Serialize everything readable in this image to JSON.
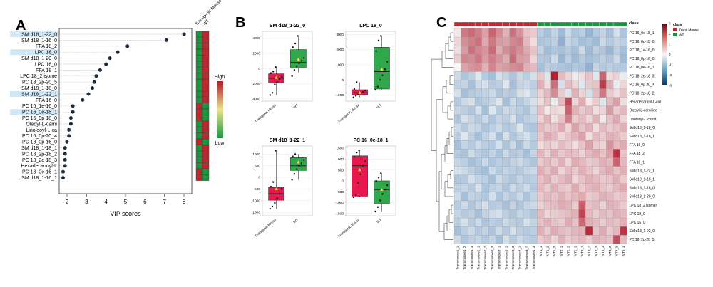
{
  "panels": {
    "A": "A",
    "B": "B",
    "C": "C"
  },
  "colors": {
    "red": "#c0262d",
    "green": "#1a9641",
    "dot": "#1f2a44",
    "highlight": "#cfe8f7",
    "box_red": "#e8174e",
    "box_green": "#2ea84a",
    "heat_high": "#b2182b",
    "heat_low": "#2166ac"
  },
  "panel_a": {
    "title": "A",
    "xlabel": "VIP scores",
    "ticks": [
      2,
      3,
      4,
      5,
      6,
      7,
      8
    ],
    "col_labels": [
      "Transgenic Mouse",
      "WT"
    ],
    "legend_high": "High",
    "legend_low": "Low",
    "rows": [
      {
        "name": "SM d18_1-22_0",
        "vip": 8.0,
        "hl": true,
        "tg": "green",
        "wt": "red"
      },
      {
        "name": "SM d18_1-16_0",
        "vip": 7.1,
        "hl": false,
        "tg": "green",
        "wt": "red"
      },
      {
        "name": "FFA 18_2",
        "vip": 5.1,
        "hl": false,
        "tg": "green",
        "wt": "red"
      },
      {
        "name": "LPC 18_0",
        "vip": 4.6,
        "hl": true,
        "tg": "green",
        "wt": "red"
      },
      {
        "name": "SM d18_1-20_0",
        "vip": 4.2,
        "hl": false,
        "tg": "green",
        "wt": "red"
      },
      {
        "name": "LPC 16_0",
        "vip": 4.0,
        "hl": false,
        "tg": "green",
        "wt": "red"
      },
      {
        "name": "FFA 18_1",
        "vip": 3.7,
        "hl": false,
        "tg": "green",
        "wt": "red"
      },
      {
        "name": "LPC 18_2 isome",
        "vip": 3.5,
        "hl": false,
        "tg": "green",
        "wt": "red"
      },
      {
        "name": "PC 18_2p-20_5",
        "vip": 3.4,
        "hl": false,
        "tg": "green",
        "wt": "red"
      },
      {
        "name": "SM d18_1-18_0",
        "vip": 3.3,
        "hl": false,
        "tg": "green",
        "wt": "red"
      },
      {
        "name": "SM d18_1-22_1",
        "vip": 3.1,
        "hl": true,
        "tg": "green",
        "wt": "red"
      },
      {
        "name": "FFA 16_0",
        "vip": 2.8,
        "hl": false,
        "tg": "green",
        "wt": "red"
      },
      {
        "name": "PC 16_1e-16_0",
        "vip": 2.3,
        "hl": false,
        "tg": "red",
        "wt": "green"
      },
      {
        "name": "PC 16_0e-18_1",
        "vip": 2.3,
        "hl": true,
        "tg": "red",
        "wt": "green"
      },
      {
        "name": "PC 16_0p-18_0",
        "vip": 2.2,
        "hl": false,
        "tg": "red",
        "wt": "green"
      },
      {
        "name": "Oleoyl-L-carni",
        "vip": 2.2,
        "hl": false,
        "tg": "green",
        "wt": "red"
      },
      {
        "name": "Linoleoyl-L-ca",
        "vip": 2.1,
        "hl": false,
        "tg": "green",
        "wt": "red"
      },
      {
        "name": "PC 16_0p-20_4",
        "vip": 2.1,
        "hl": false,
        "tg": "green",
        "wt": "red"
      },
      {
        "name": "PC 18_0p-16_0",
        "vip": 2.0,
        "hl": false,
        "tg": "red",
        "wt": "green"
      },
      {
        "name": "SM d18_1-18_1",
        "vip": 1.9,
        "hl": false,
        "tg": "green",
        "wt": "red"
      },
      {
        "name": "PC 18_2p-18_2",
        "vip": 1.9,
        "hl": false,
        "tg": "green",
        "wt": "red"
      },
      {
        "name": "PC 18_2e-18_3",
        "vip": 1.9,
        "hl": false,
        "tg": "green",
        "wt": "red"
      },
      {
        "name": "Hexadecanoyl-L",
        "vip": 1.9,
        "hl": false,
        "tg": "green",
        "wt": "red"
      },
      {
        "name": "PC 18_0e-16_1",
        "vip": 1.8,
        "hl": false,
        "tg": "red",
        "wt": "green"
      },
      {
        "name": "SM d18_1-16_1",
        "vip": 1.8,
        "hl": false,
        "tg": "red",
        "wt": "green"
      }
    ]
  },
  "panel_b": {
    "title": "B",
    "categories": [
      "Transgenic Mouse",
      "WT"
    ],
    "plots": [
      {
        "title": "SM d18_1-22_0",
        "yticks": [
          -4000,
          -2000,
          0,
          2000,
          4000
        ],
        "ylim": [
          -4300,
          4900
        ],
        "boxes": [
          {
            "q1": -1900,
            "med": -1300,
            "q3": -700,
            "lo": -3500,
            "hi": 200,
            "mean": -1200,
            "pts": [
              -3500,
              -3200,
              -2100,
              -1800,
              -1400,
              -1100,
              -600,
              -400,
              200
            ]
          },
          {
            "q1": 100,
            "med": 800,
            "q3": 2500,
            "lo": -500,
            "hi": 4400,
            "mean": 1200,
            "pts": [
              -1000,
              -200,
              300,
              700,
              1000,
              1400,
              2800,
              3300,
              4300
            ]
          }
        ]
      },
      {
        "title": "LPC 18_0",
        "yticks": [
          -1000,
          0,
          1000,
          2000,
          3000
        ],
        "ylim": [
          -1400,
          3200
        ],
        "boxes": [
          {
            "q1": -1000,
            "med": -850,
            "q3": -650,
            "lo": -1150,
            "hi": -150,
            "mean": -850,
            "pts": [
              -1150,
              -1050,
              -950,
              -900,
              -800,
              -700,
              -600,
              -150
            ]
          },
          {
            "q1": -600,
            "med": 550,
            "q3": 2150,
            "lo": -650,
            "hi": 2900,
            "mean": 700,
            "pts": [
              -650,
              -450,
              0,
              300,
              700,
              1200,
              1900,
              2600,
              2900
            ]
          }
        ]
      },
      {
        "title": "SM d18_1-22_1",
        "yticks": [
          -1500,
          -1000,
          -500,
          0,
          500,
          1000
        ],
        "ylim": [
          -1650,
          1350
        ],
        "boxes": [
          {
            "q1": -980,
            "med": -700,
            "q3": -430,
            "lo": -1350,
            "hi": 1150,
            "mean": -500,
            "pts": [
              -1350,
              -1250,
              -1100,
              -900,
              -700,
              -500,
              -400,
              -200,
              1150
            ]
          },
          {
            "q1": 300,
            "med": 500,
            "q3": 850,
            "lo": -100,
            "hi": 1000,
            "mean": 650,
            "pts": [
              -100,
              150,
              350,
              500,
              600,
              750,
              900,
              1000
            ]
          }
        ]
      },
      {
        "title": "PC 16_0e-18_1",
        "yticks": [
          -1500,
          -1000,
          -500,
          0,
          500,
          1000,
          1500
        ],
        "ylim": [
          -1600,
          1600
        ],
        "boxes": [
          {
            "q1": -700,
            "med": 700,
            "q3": 1150,
            "lo": -750,
            "hi": 1400,
            "mean": 500,
            "pts": [
              -750,
              -650,
              -100,
              300,
              700,
              900,
              1100,
              1300,
              1400
            ]
          },
          {
            "q1": -1050,
            "med": -400,
            "q3": 0,
            "lo": -1400,
            "hi": 350,
            "mean": -400,
            "pts": [
              -1400,
              -1200,
              -900,
              -600,
              -400,
              -200,
              0,
              150,
              350
            ]
          }
        ]
      }
    ]
  },
  "panel_c": {
    "title": "C",
    "class_label": "class",
    "legend_title": "class",
    "legend_items": [
      "Trans Mouse",
      "WT"
    ],
    "scale_ticks": [
      "3",
      "2",
      "1",
      "0",
      "-1",
      "-2",
      "-3"
    ],
    "rows": [
      "PC 16_0e-18_1",
      "PC 16_0p-18_0",
      "PC 18_1e-16_0",
      "PC 18_0p-16_0",
      "PC 18_0e-16_1",
      "PC 18_2e-18_3",
      "PC 16_0p-20_4",
      "PC 18_2p-18_2",
      "Hexadecanoyl-L-car",
      "Oleoyl-L-carnitine",
      "Linoleoyl-L-carnit",
      "SM d18_1-18_0",
      "SM d18_1-18_1",
      "FFA 16_0",
      "FFA 18_2",
      "FFA 18_1",
      "SM d18_1-22_1",
      "SM d18_1-16_1",
      "SM d18_1-18_0",
      "SM d18_1-20_0",
      "LPC 18_2 isomer",
      "LPC 18_0",
      "LPC 16_0",
      "SM d18_1-22_0",
      "PC 18_2p-20_5"
    ],
    "cols": [
      "Transmouse1_1",
      "Transmouse1_2",
      "Transmouse1_3",
      "Transmouse2_1",
      "Transmouse2_2",
      "Transmouse2_3",
      "Transmouse3_1",
      "Transmouse3_2",
      "Transmouse3_3",
      "Transmouse4_1",
      "Transmouse4_2",
      "Transmouse4_3",
      "WT1_1",
      "WT1_2",
      "WT1_3",
      "WT2_1",
      "WT2_2",
      "WT2_3",
      "WT3_1",
      "WT3_2",
      "WT3_3",
      "WT4_1",
      "WT4_2",
      "WT4_3",
      "WT5_1"
    ],
    "n_trans": 12,
    "matrix": [
      [
        0.1,
        1.5,
        1.7,
        1.4,
        0.9,
        1.8,
        1.2,
        0.7,
        1.6,
        1.1,
        0.5,
        0.4,
        -0.6,
        -0.9,
        -0.5,
        -1.0,
        -0.4,
        -0.8,
        -0.6,
        -1.1,
        -0.7,
        -0.5,
        -0.9,
        -0.3,
        -0.8
      ],
      [
        0.3,
        1.2,
        1.4,
        1.6,
        0.8,
        1.5,
        1.0,
        0.9,
        1.3,
        1.4,
        0.6,
        0.2,
        -0.8,
        -0.7,
        -0.6,
        -1.2,
        -0.5,
        -0.6,
        -0.9,
        -0.8,
        -1.0,
        -0.4,
        -0.7,
        -0.5,
        -0.6
      ],
      [
        0.2,
        1.0,
        1.6,
        1.3,
        1.1,
        1.7,
        0.8,
        1.2,
        1.5,
        1.2,
        0.8,
        0.5,
        -0.5,
        -1.0,
        -0.8,
        -0.9,
        -0.7,
        -0.9,
        -0.4,
        -1.0,
        -0.6,
        -0.8,
        -1.1,
        -0.6,
        -0.9
      ],
      [
        0.4,
        1.3,
        1.2,
        1.5,
        1.0,
        1.4,
        1.1,
        0.8,
        1.7,
        1.0,
        0.9,
        0.3,
        -0.7,
        -0.8,
        -0.4,
        -1.1,
        -0.6,
        -1.0,
        -0.7,
        -0.9,
        -0.8,
        -0.6,
        -0.8,
        -0.4,
        -1.0
      ],
      [
        0.0,
        0.9,
        1.1,
        1.2,
        0.7,
        1.3,
        0.9,
        1.0,
        1.2,
        1.3,
        0.7,
        0.6,
        -0.9,
        -0.6,
        -0.7,
        -0.8,
        -0.9,
        -0.7,
        -0.8,
        -1.2,
        -0.5,
        -0.7,
        -0.6,
        -0.7,
        -0.7
      ],
      [
        -0.4,
        -0.8,
        -0.6,
        -0.2,
        -0.7,
        -0.9,
        -0.3,
        -0.5,
        -0.8,
        -0.4,
        -0.6,
        -0.3,
        0.4,
        -0.2,
        2.9,
        0.6,
        0.3,
        -0.1,
        0.2,
        0.5,
        -0.2,
        1.8,
        0.2,
        0.3,
        -0.1
      ],
      [
        -0.6,
        -0.5,
        -0.9,
        -0.4,
        -0.3,
        -0.7,
        -0.6,
        -0.2,
        -0.9,
        -0.5,
        -0.4,
        -0.6,
        0.7,
        0.2,
        1.6,
        -0.3,
        0.6,
        0.3,
        -0.2,
        0.4,
        0.5,
        2.4,
        0.8,
        -0.1,
        0.3
      ],
      [
        -0.3,
        -0.9,
        -0.7,
        -0.6,
        -0.5,
        -0.4,
        -0.8,
        -0.6,
        -0.7,
        -0.3,
        -0.2,
        -0.5,
        0.3,
        0.6,
        1.2,
        0.4,
        -0.2,
        0.7,
        0.3,
        -0.3,
        0.6,
        1.5,
        0.4,
        0.2,
        0.5
      ],
      [
        -0.7,
        -0.4,
        -0.3,
        -0.8,
        -0.6,
        -0.5,
        -0.2,
        -0.9,
        -0.4,
        -0.7,
        -0.5,
        -0.3,
        0.2,
        0.5,
        -0.1,
        0.6,
        2.2,
        0.3,
        0.8,
        0.1,
        0.4,
        -0.2,
        0.6,
        0.9,
        0.2
      ],
      [
        -0.5,
        -0.6,
        -0.8,
        -0.3,
        -0.9,
        -0.2,
        -0.7,
        -0.4,
        -0.5,
        -0.6,
        -0.8,
        -0.4,
        0.5,
        0.1,
        0.3,
        0.2,
        1.8,
        0.7,
        0.4,
        0.6,
        0.2,
        0.3,
        1.0,
        0.4,
        0.6
      ],
      [
        -0.8,
        -0.3,
        -0.5,
        -0.7,
        -0.4,
        -0.8,
        -0.5,
        -0.6,
        -0.3,
        -0.8,
        -0.6,
        -0.5,
        0.3,
        0.7,
        0.2,
        0.5,
        1.4,
        0.4,
        0.6,
        0.3,
        0.7,
        0.1,
        0.5,
        0.8,
        0.3
      ],
      [
        -0.4,
        -0.7,
        -0.4,
        -0.5,
        -0.8,
        -0.6,
        -0.4,
        -0.7,
        -0.6,
        -0.2,
        -0.7,
        -0.8,
        0.6,
        0.4,
        0.5,
        0.8,
        0.3,
        0.9,
        0.5,
        0.7,
        0.2,
        0.6,
        0.4,
        0.5,
        0.7
      ],
      [
        -0.6,
        -0.2,
        -0.6,
        -0.9,
        -0.5,
        -0.3,
        -0.9,
        -0.3,
        -0.8,
        -0.5,
        -0.3,
        -0.6,
        0.4,
        0.8,
        0.6,
        0.3,
        0.5,
        0.6,
        0.9,
        0.2,
        0.6,
        0.4,
        0.7,
        0.6,
        0.4
      ],
      [
        -0.9,
        -0.5,
        -0.7,
        -0.4,
        -0.6,
        -0.7,
        -0.3,
        -0.8,
        -0.4,
        -0.9,
        -0.4,
        -0.7,
        0.2,
        0.4,
        0.3,
        0.6,
        0.4,
        0.2,
        0.5,
        0.9,
        0.4,
        0.3,
        1.1,
        0.6,
        0.8
      ],
      [
        -0.7,
        -0.8,
        -0.4,
        -0.6,
        -0.7,
        -0.5,
        -0.8,
        -0.4,
        -0.7,
        -0.6,
        -0.9,
        -0.5,
        0.6,
        0.3,
        0.7,
        0.4,
        0.6,
        0.5,
        0.3,
        0.6,
        0.8,
        0.5,
        0.9,
        2.6,
        0.5
      ],
      [
        -0.5,
        -0.6,
        -0.9,
        -0.7,
        -0.4,
        -0.8,
        -0.6,
        -0.7,
        -0.5,
        -0.4,
        -0.6,
        -0.8,
        0.4,
        0.6,
        0.4,
        0.7,
        0.3,
        0.8,
        0.6,
        0.4,
        0.5,
        0.7,
        0.6,
        1.8,
        0.6
      ],
      [
        -0.3,
        -0.4,
        -0.6,
        -0.8,
        -0.9,
        -0.4,
        -0.7,
        -0.5,
        -0.6,
        -0.7,
        -0.5,
        -0.4,
        0.7,
        0.5,
        0.8,
        0.3,
        0.6,
        0.4,
        0.7,
        0.5,
        0.3,
        0.6,
        0.8,
        0.5,
        0.7
      ],
      [
        -0.8,
        -0.7,
        -0.3,
        -0.5,
        -0.6,
        -0.9,
        -0.4,
        -0.6,
        -0.8,
        -0.5,
        -0.7,
        -0.6,
        0.5,
        0.7,
        0.4,
        0.6,
        0.8,
        0.3,
        0.5,
        0.7,
        0.6,
        0.4,
        0.5,
        0.7,
        0.4
      ],
      [
        -0.6,
        -0.5,
        -0.7,
        -0.3,
        -0.8,
        -0.6,
        -0.5,
        -0.8,
        -0.4,
        -0.6,
        -0.4,
        -0.7,
        0.6,
        0.4,
        0.7,
        0.5,
        0.4,
        0.8,
        0.4,
        0.6,
        0.7,
        0.5,
        0.4,
        0.6,
        0.8
      ],
      [
        -0.4,
        -0.9,
        -0.5,
        -0.6,
        -0.7,
        -0.3,
        -0.8,
        -0.5,
        -0.7,
        -0.4,
        -0.8,
        -0.5,
        0.4,
        0.6,
        0.5,
        0.7,
        0.5,
        0.6,
        0.8,
        0.4,
        0.5,
        0.7,
        0.6,
        0.4,
        0.5
      ],
      [
        -0.7,
        -0.4,
        -0.8,
        -0.5,
        -0.3,
        -0.7,
        -0.6,
        -0.9,
        -0.5,
        -0.8,
        -0.5,
        -0.4,
        0.3,
        0.5,
        0.6,
        0.8,
        0.7,
        0.4,
        1.9,
        0.5,
        0.6,
        0.3,
        0.7,
        0.6,
        0.4
      ],
      [
        -0.5,
        -0.7,
        -0.6,
        -0.9,
        -0.5,
        -0.4,
        -0.3,
        -0.6,
        -0.8,
        -0.5,
        -0.6,
        -0.8,
        0.6,
        0.3,
        0.4,
        0.5,
        0.6,
        0.7,
        2.3,
        0.6,
        0.4,
        0.6,
        0.5,
        0.7,
        0.6
      ],
      [
        -0.6,
        -0.3,
        -0.7,
        -0.4,
        -0.8,
        -0.6,
        -0.7,
        -0.4,
        -0.6,
        -0.7,
        -0.3,
        -0.5,
        0.5,
        0.7,
        0.5,
        0.4,
        0.8,
        0.5,
        1.7,
        0.7,
        0.6,
        0.4,
        0.6,
        0.5,
        0.7
      ],
      [
        -0.9,
        -0.6,
        -0.4,
        -0.7,
        -0.5,
        -0.8,
        -0.4,
        -0.7,
        -0.3,
        -0.6,
        -0.7,
        -0.6,
        0.7,
        0.4,
        0.8,
        0.6,
        0.5,
        0.6,
        0.7,
        2.7,
        0.5,
        0.8,
        0.4,
        0.6,
        2.5
      ],
      [
        -0.4,
        -0.8,
        -0.6,
        -0.5,
        -0.7,
        -0.5,
        -0.9,
        -0.3,
        -0.7,
        -0.4,
        -0.6,
        -0.7,
        0.4,
        0.6,
        0.3,
        0.7,
        0.4,
        0.5,
        0.6,
        0.4,
        0.7,
        0.6,
        0.5,
        2.1,
        0.6
      ]
    ]
  }
}
